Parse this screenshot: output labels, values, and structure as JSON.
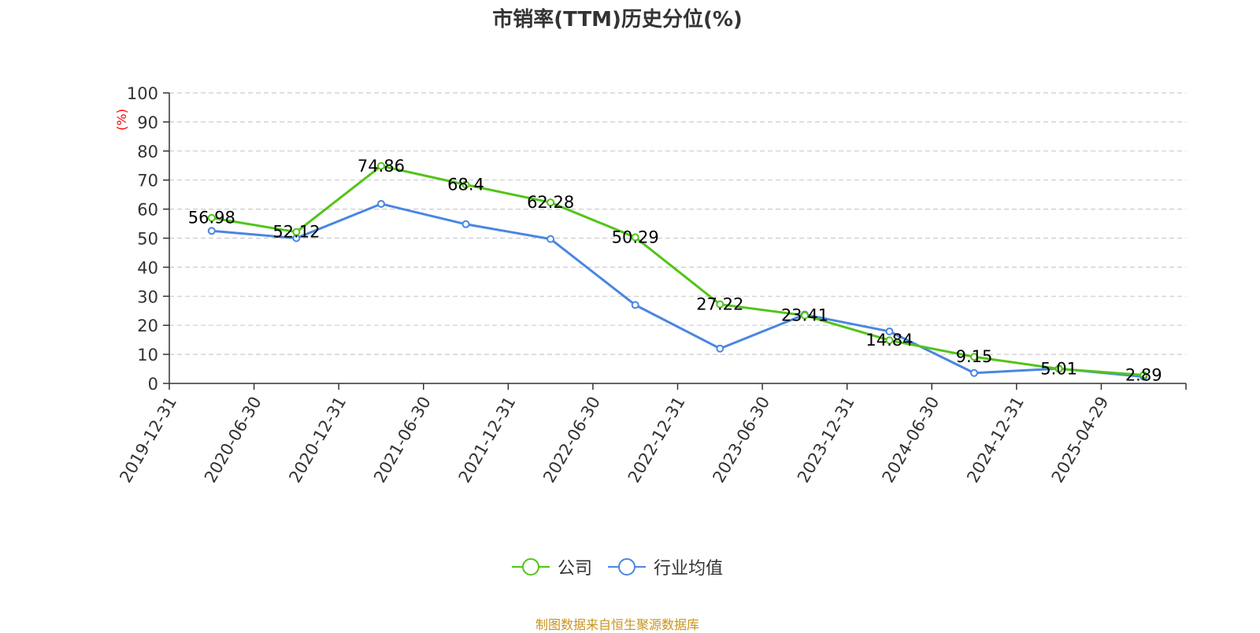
{
  "title": "市销率(TTM)历史分位(%)",
  "source": "制图数据来自恒生聚源数据库",
  "colors": {
    "company": "#52c41a",
    "industry": "#4a86e0",
    "ylabel": "#ff0000",
    "grid": "#cccccc",
    "axis": "#333333",
    "source": "#c8941e"
  },
  "chart_data": {
    "type": "line",
    "title": "市销率(TTM)历史分位(%)",
    "xlabel": "",
    "ylabel": "(%)",
    "ylim": [
      0,
      100
    ],
    "yticks": [
      0,
      10,
      20,
      30,
      40,
      50,
      60,
      70,
      80,
      90,
      100
    ],
    "grid": "horizontal dashed",
    "legend_position": "bottom-center",
    "categories": [
      "2019-12-31",
      "2020-06-30",
      "2020-12-31",
      "2021-06-30",
      "2021-12-31",
      "2022-06-30",
      "2022-12-31",
      "2023-06-30",
      "2023-12-31",
      "2024-06-30",
      "2024-12-31",
      "2025-04-29"
    ],
    "series": [
      {
        "name": "公司",
        "color": "#52c41a",
        "values": [
          56.98,
          52.12,
          74.86,
          68.4,
          62.28,
          50.29,
          27.22,
          23.41,
          14.84,
          9.15,
          5.01,
          2.89
        ],
        "data_labels": [
          "56.98",
          "52.12",
          "74.86",
          "68.4",
          "62.28",
          "50.29",
          "27.22",
          "23.41",
          "14.84",
          "9.15",
          "5.01",
          "2.89"
        ]
      },
      {
        "name": "行业均值",
        "color": "#4a86e0",
        "values": [
          52.5,
          50.0,
          61.8,
          54.8,
          49.7,
          27.0,
          12.0,
          23.7,
          17.9,
          3.6,
          5.1,
          2.3
        ]
      }
    ]
  }
}
